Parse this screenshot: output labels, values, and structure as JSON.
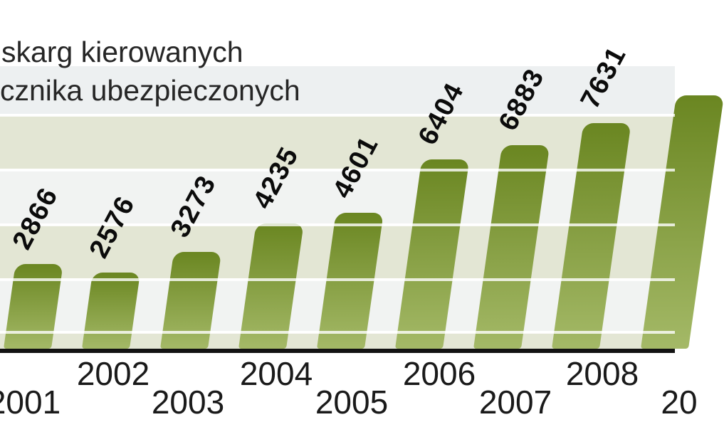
{
  "title": {
    "line1": "skarg kierowanych",
    "line2": "cznika ubezpieczonych"
  },
  "chart_data": {
    "type": "bar",
    "title_visible_text": [
      "skarg kierowanych",
      "cznika ubezpieczonych"
    ],
    "title_truncated_at_left_edge": true,
    "categories": [
      "2001",
      "2002",
      "2003",
      "2004",
      "2005",
      "2006",
      "2007",
      "2008"
    ],
    "values": [
      2866,
      2576,
      3273,
      4235,
      4601,
      6404,
      6883,
      7631
    ],
    "value_labels": [
      "2866",
      "2576",
      "3273",
      "4235",
      "4601",
      "6404",
      "6883",
      "7631"
    ],
    "partial_ninth_bar": {
      "category_label_visible": "20",
      "value_label_visible": "",
      "cut_off_at_right_edge": true
    },
    "xlabel": "",
    "ylabel": "",
    "y_axis_tick_labels_visible": false,
    "legend": false,
    "grid": "horizontal-bands",
    "colors": {
      "bar_gradient_top": "#6a8621",
      "bar_gradient_bottom": "#a4b967",
      "band_khaki": "#e3e6d4",
      "band_light": "#f1f3f2",
      "band_title_row": "#edf0f1",
      "axis_line": "#121212",
      "value_label_text": "#0b0b0b",
      "year_label_text": "#1a1a1a",
      "title_text": "#262626"
    }
  }
}
